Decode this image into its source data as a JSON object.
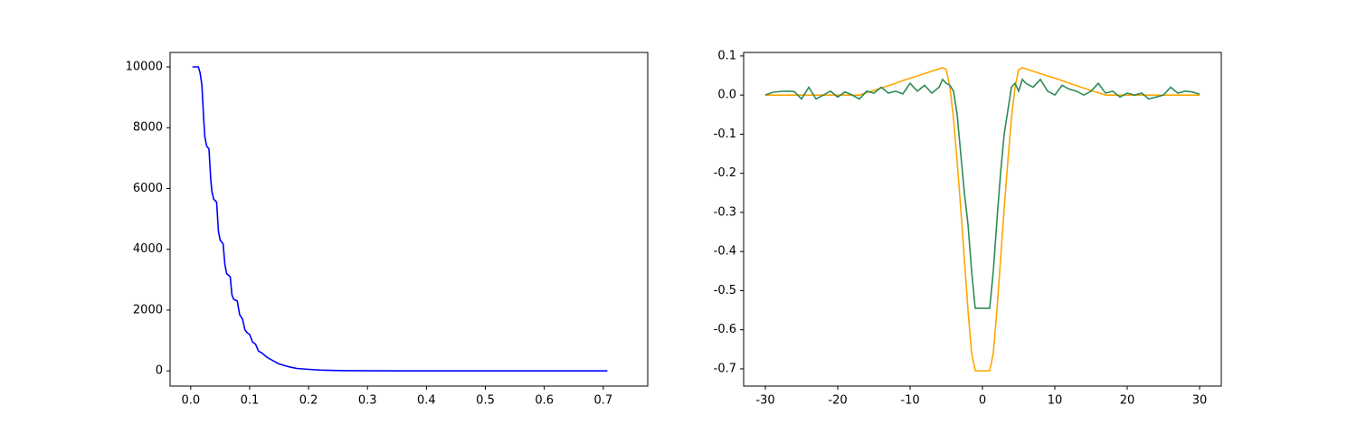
{
  "chart_data": [
    {
      "type": "line",
      "x": [
        0.003,
        0.013,
        0.016,
        0.019,
        0.022,
        0.024,
        0.027,
        0.031,
        0.034,
        0.036,
        0.039,
        0.044,
        0.047,
        0.05,
        0.055,
        0.058,
        0.061,
        0.067,
        0.07,
        0.073,
        0.079,
        0.083,
        0.088,
        0.092,
        0.096,
        0.1,
        0.105,
        0.11,
        0.115,
        0.12,
        0.13,
        0.14,
        0.15,
        0.16,
        0.17,
        0.18,
        0.2,
        0.22,
        0.25,
        0.3,
        0.35,
        0.4,
        0.5,
        0.6,
        0.707
      ],
      "values": [
        10000,
        10000,
        9800,
        9400,
        8300,
        7700,
        7400,
        7300,
        6300,
        5900,
        5650,
        5550,
        4600,
        4300,
        4180,
        3500,
        3200,
        3100,
        2500,
        2350,
        2300,
        1850,
        1700,
        1350,
        1250,
        1200,
        950,
        880,
        650,
        600,
        440,
        330,
        230,
        170,
        120,
        80,
        50,
        25,
        10,
        3,
        1,
        0,
        0,
        0,
        0
      ],
      "color": "#0000ff",
      "xlim": [
        -0.035,
        0.7755
      ],
      "ylim": [
        -500,
        10476
      ],
      "xticks": [
        {
          "value": 0,
          "label": "0.0"
        },
        0.1,
        0.2,
        0.3,
        0.4,
        0.5,
        0.6,
        0.7
      ],
      "yticks": [
        0,
        2000,
        4000,
        6000,
        8000,
        10000
      ]
    },
    {
      "type": "line",
      "x": [
        -30,
        -29,
        -28,
        -27,
        -26,
        -25,
        -24,
        -23,
        -22,
        -21,
        -20,
        -19,
        -18,
        -17,
        -16,
        -15,
        -14,
        -13,
        -12,
        -11,
        -10,
        -9,
        -8,
        -7,
        -6,
        -5.5,
        -5,
        -4.5,
        -4,
        -3.5,
        -3,
        -2.5,
        -2,
        -1.5,
        -1,
        1,
        1.5,
        2,
        2.5,
        3,
        3.5,
        4,
        4.5,
        5,
        5.5,
        6,
        7,
        8,
        9,
        10,
        11,
        12,
        13,
        14,
        15,
        16,
        17,
        18,
        19,
        20,
        21,
        22,
        23,
        24,
        25,
        26,
        27,
        28,
        29,
        30
      ],
      "series": [
        {
          "color": "#ffa500",
          "values": [
            0,
            0,
            0,
            0,
            0,
            0,
            0,
            0,
            0,
            0,
            0,
            0,
            0,
            0,
            0.006,
            0.012,
            0.018,
            0.024,
            0.03,
            0.037,
            0.043,
            0.049,
            0.055,
            0.061,
            0.067,
            0.07,
            0.065,
            0.02,
            -0.06,
            -0.17,
            -0.29,
            -0.42,
            -0.55,
            -0.66,
            -0.705,
            -0.705,
            -0.66,
            -0.55,
            -0.42,
            -0.29,
            -0.17,
            -0.06,
            0.02,
            0.065,
            0.07,
            0.067,
            0.061,
            0.055,
            0.049,
            0.043,
            0.037,
            0.03,
            0.024,
            0.018,
            0.012,
            0.006,
            0,
            0,
            0,
            0,
            0,
            0,
            0,
            0,
            0,
            0,
            0,
            0,
            0,
            0
          ]
        },
        {
          "color": "#2e8b57",
          "values": [
            0,
            0.007,
            0.009,
            0.01,
            0.009,
            -0.01,
            0.02,
            -0.01,
            0,
            0.01,
            -0.005,
            0.008,
            0,
            -0.01,
            0.01,
            0.005,
            0.02,
            0.005,
            0.01,
            0.003,
            0.03,
            0.01,
            0.025,
            0.005,
            0.02,
            0.04,
            0.03,
            0.025,
            0.01,
            -0.05,
            -0.15,
            -0.25,
            -0.33,
            -0.45,
            -0.545,
            -0.545,
            -0.45,
            -0.32,
            -0.2,
            -0.1,
            -0.04,
            0.02,
            0.03,
            0.01,
            0.04,
            0.03,
            0.02,
            0.04,
            0.01,
            0,
            0.025,
            0.015,
            0.01,
            0,
            0.01,
            0.03,
            0.005,
            0.01,
            -0.005,
            0.005,
            0,
            0.005,
            -0.01,
            -0.005,
            0,
            0.02,
            0.005,
            0.01,
            0.008,
            0.002
          ]
        }
      ],
      "xlim": [
        -33,
        33
      ],
      "ylim": [
        -0.744,
        0.109
      ],
      "xticks": [
        -30,
        -20,
        -10,
        0,
        10,
        20,
        30
      ],
      "yticks": [
        0.1,
        {
          "value": 0,
          "label": "0.0"
        },
        -0.1,
        -0.2,
        -0.3,
        -0.4,
        -0.5,
        -0.6,
        -0.7
      ]
    }
  ]
}
